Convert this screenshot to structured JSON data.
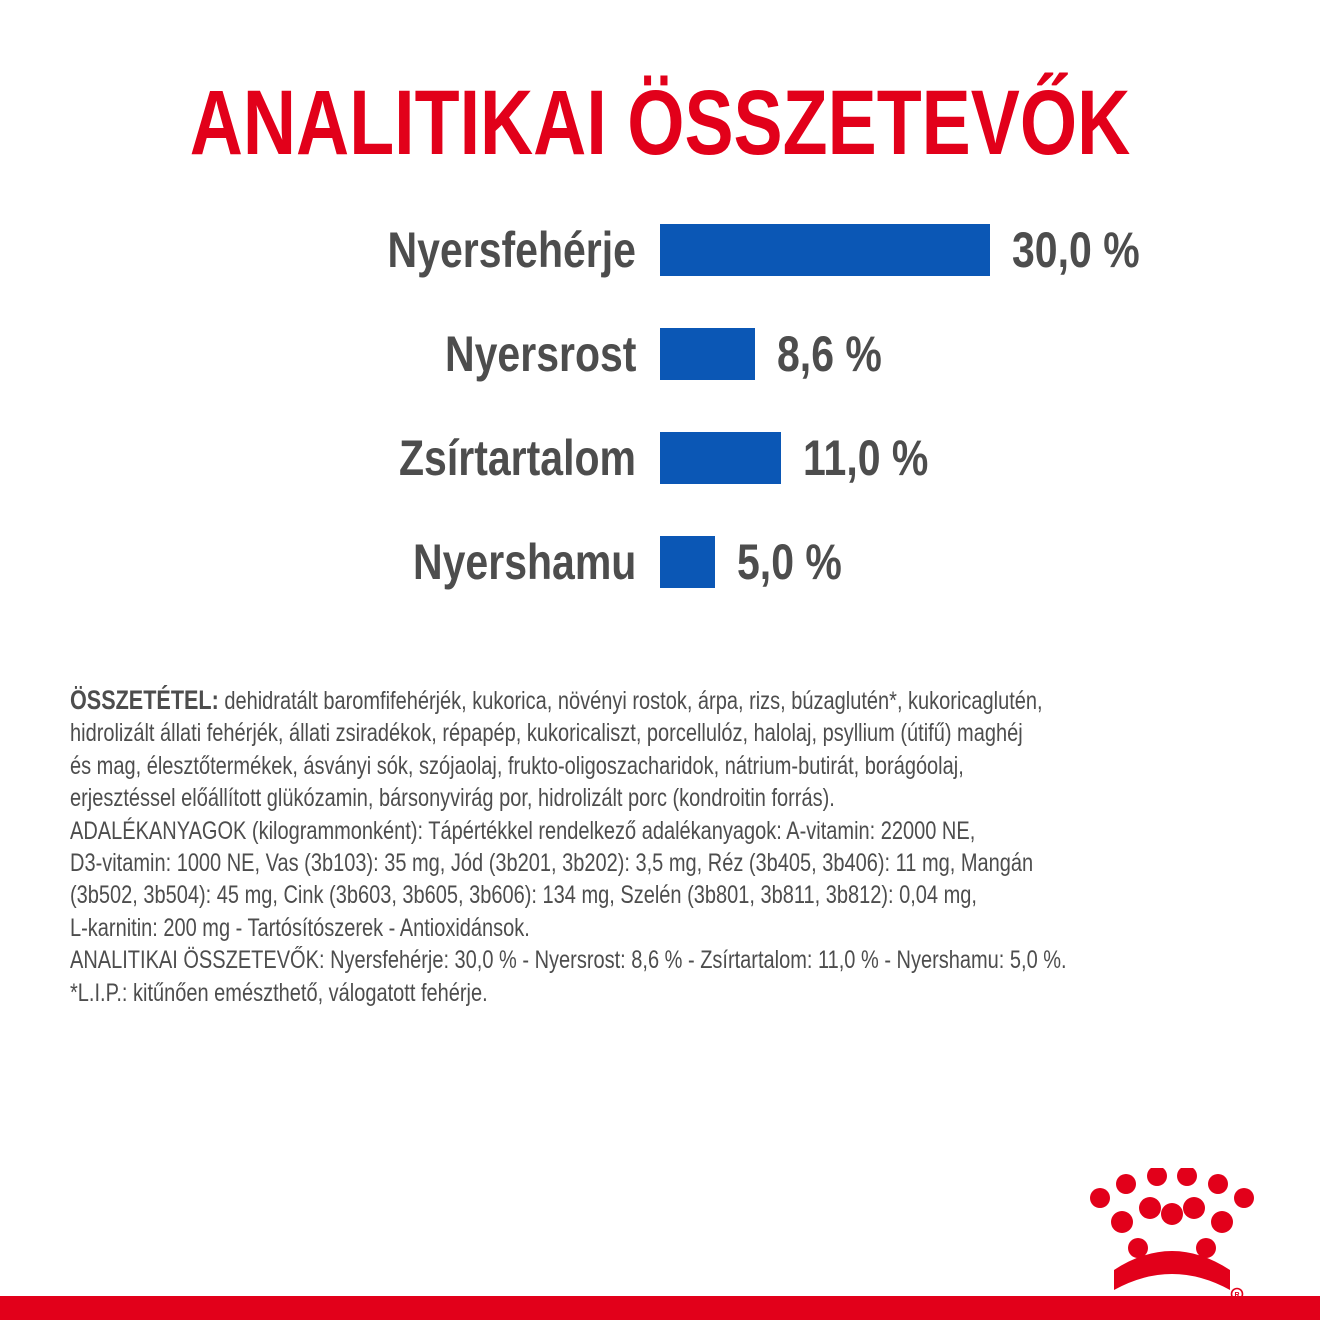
{
  "header": {
    "title": "ANALITIKAI ÖSSZETEVŐK"
  },
  "chart_data": {
    "type": "bar",
    "orientation": "horizontal",
    "categories": [
      "Nyersfehérje",
      "Nyersrost",
      "Zsírtartalom",
      "Nyershamu"
    ],
    "values": [
      30.0,
      8.6,
      11.0,
      5.0
    ],
    "value_labels": [
      "30,0 %",
      "8,6 %",
      "11,0 %",
      "5,0 %"
    ],
    "unit": "%",
    "bar_color": "#0b57b5",
    "label_color": "#4d4d4d",
    "grid": false
  },
  "composition": {
    "lead": "ÖSSZETÉTEL:",
    "lines": [
      " dehidratált baromfifehérjék, kukorica, növényi rostok, árpa, rizs, búzaglutén*, kukoricaglutén,",
      "hidrolizált állati fehérjék, állati zsiradékok, répapép, kukoricaliszt, porcellulóz, halolaj, psyllium (útifű) maghéj",
      "és mag, élesztőtermékek, ásványi sók, szójaolaj, frukto-oligoszacharidok, nátrium-butirát, borágóolaj,",
      "erjesztéssel előállított glükózamin, bársonyvirág por, hidrolizált porc (kondroitin forrás).",
      "ADALÉKANYAGOK (kilogrammonként): Tápértékkel rendelkező adalékanyagok: A-vitamin: 22000 NE,",
      "D3-vitamin: 1000 NE, Vas (3b103): 35 mg, Jód (3b201, 3b202): 3,5 mg, Réz (3b405, 3b406): 11 mg, Mangán",
      "(3b502, 3b504): 45 mg, Cink (3b603, 3b605, 3b606): 134 mg, Szelén (3b801, 3b811, 3b812): 0,04 mg,",
      "L-karnitin: 200 mg - Tartósítószerek - Antioxidánsok.",
      "ANALITIKAI ÖSSZETEVŐK: Nyersfehérje: 30,0 % - Nyersrost: 8,6 % - Zsírtartalom: 11,0 % - Nyershamu: 5,0 %.",
      "*L.I.P.: kitűnően emészthető, válogatott fehérje."
    ]
  },
  "brand": {
    "logo_icon": "crown-icon",
    "color": "#e2001a"
  }
}
